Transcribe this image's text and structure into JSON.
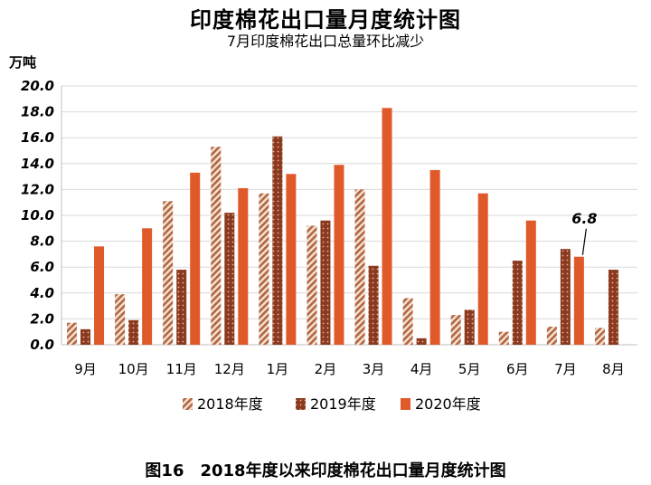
{
  "chart_data": {
    "type": "bar",
    "title": "印度棉花出口量月度统计图",
    "subtitle": "7月印度棉花出口总量环比减少",
    "unit_label": "万吨",
    "caption": "图16　2018年度以来印度棉花出口量月度统计图",
    "categories": [
      "9月",
      "10月",
      "11月",
      "12月",
      "1月",
      "2月",
      "3月",
      "4月",
      "5月",
      "6月",
      "7月",
      "8月"
    ],
    "ylim": [
      0,
      20
    ],
    "yticks": [
      "0.0",
      "2.0",
      "4.0",
      "6.0",
      "8.0",
      "10.0",
      "12.0",
      "14.0",
      "16.0",
      "18.0",
      "20.0"
    ],
    "grid": true,
    "legend_position": "bottom",
    "series": [
      {
        "name": "2018年度",
        "values": [
          1.7,
          3.9,
          11.1,
          15.3,
          11.7,
          9.2,
          12.0,
          3.6,
          2.3,
          1.0,
          1.4,
          1.3
        ],
        "color": "#b4663f",
        "pattern": "diagonal-stripes"
      },
      {
        "name": "2019年度",
        "values": [
          1.2,
          1.9,
          5.8,
          10.2,
          16.1,
          9.6,
          6.1,
          0.5,
          2.7,
          6.5,
          7.4,
          5.8
        ],
        "color": "#8b3a1f",
        "pattern": "dots"
      },
      {
        "name": "2020年度",
        "values": [
          7.6,
          9.0,
          13.3,
          12.1,
          13.2,
          13.9,
          18.3,
          13.5,
          11.7,
          9.6,
          6.8,
          null
        ],
        "color": "#e0592b",
        "pattern": "solid"
      }
    ],
    "annotations": [
      {
        "text": "6.8",
        "series": "2020年度",
        "category": "7月"
      }
    ]
  }
}
